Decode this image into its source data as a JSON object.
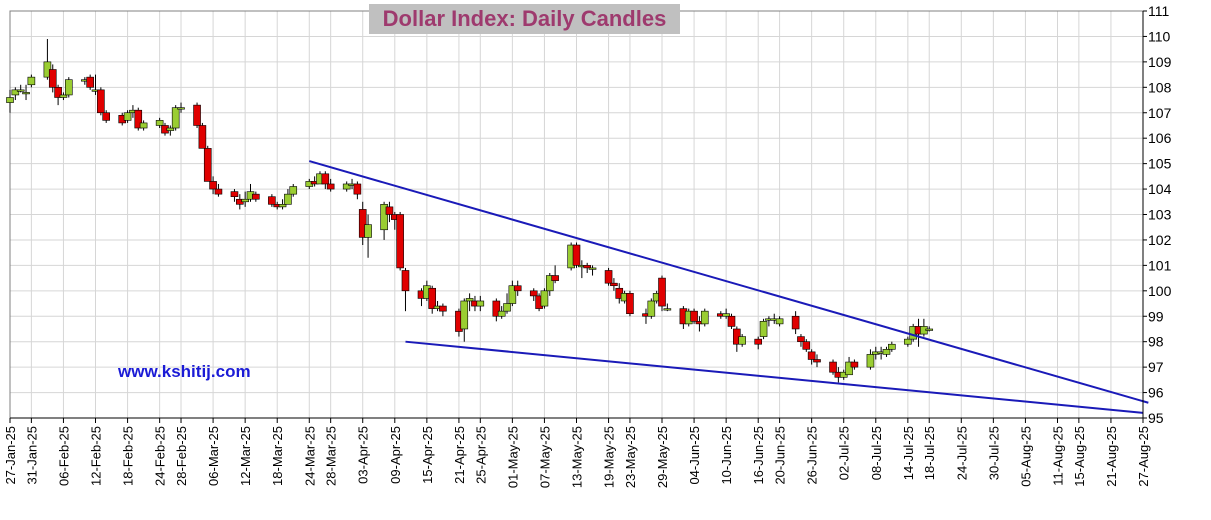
{
  "chart_data": {
    "type": "candlestick",
    "title": "Dollar Index:  Daily Candles",
    "watermark": "www.kshitij.com",
    "ylim": [
      95,
      111
    ],
    "y_ticks": [
      95,
      96,
      97,
      98,
      99,
      100,
      101,
      102,
      103,
      104,
      105,
      106,
      107,
      108,
      109,
      110,
      111
    ],
    "x_ticks": [
      "27-Jan-25",
      "31-Jan-25",
      "06-Feb-25",
      "12-Feb-25",
      "18-Feb-25",
      "24-Feb-25",
      "28-Feb-25",
      "06-Mar-25",
      "12-Mar-25",
      "18-Mar-25",
      "24-Mar-25",
      "28-Mar-25",
      "03-Apr-25",
      "09-Apr-25",
      "15-Apr-25",
      "21-Apr-25",
      "25-Apr-25",
      "01-May-25",
      "07-May-25",
      "13-May-25",
      "19-May-25",
      "23-May-25",
      "29-May-25",
      "04-Jun-25",
      "10-Jun-25",
      "16-Jun-25",
      "20-Jun-25",
      "26-Jun-25",
      "02-Jul-25",
      "08-Jul-25",
      "14-Jul-25",
      "18-Jul-25",
      "24-Jul-25",
      "30-Jul-25",
      "05-Aug-25",
      "11-Aug-25",
      "15-Aug-25",
      "21-Aug-25",
      "27-Aug-25"
    ],
    "up_color": "#9acd32",
    "down_color": "#e00000",
    "trendline_color": "#1a1ab8",
    "grid": true,
    "trendlines": [
      {
        "from": [
          "24-Mar-25",
          105.1
        ],
        "to": [
          "28-Aug-25",
          95.6
        ]
      },
      {
        "from": [
          "11-Apr-25",
          98.0
        ],
        "to": [
          "27-Aug-25",
          95.2
        ]
      }
    ],
    "candles": [
      {
        "date": "27-Jan-25",
        "o": 107.4,
        "h": 107.9,
        "l": 107.0,
        "c": 107.6
      },
      {
        "date": "28-Jan-25",
        "o": 107.7,
        "h": 108.0,
        "l": 107.5,
        "c": 107.9
      },
      {
        "date": "29-Jan-25",
        "o": 107.9,
        "h": 108.1,
        "l": 107.8,
        "c": 107.9
      },
      {
        "date": "30-Jan-25",
        "o": 107.8,
        "h": 108.1,
        "l": 107.5,
        "c": 107.8
      },
      {
        "date": "31-Jan-25",
        "o": 108.1,
        "h": 108.5,
        "l": 108.0,
        "c": 108.4
      },
      {
        "date": "03-Feb-25",
        "o": 108.4,
        "h": 109.9,
        "l": 108.3,
        "c": 109.0
      },
      {
        "date": "04-Feb-25",
        "o": 108.7,
        "h": 108.9,
        "l": 107.8,
        "c": 108.0
      },
      {
        "date": "05-Feb-25",
        "o": 108.0,
        "h": 108.1,
        "l": 107.3,
        "c": 107.6
      },
      {
        "date": "06-Feb-25",
        "o": 107.6,
        "h": 107.8,
        "l": 107.5,
        "c": 107.7
      },
      {
        "date": "07-Feb-25",
        "o": 107.7,
        "h": 108.4,
        "l": 107.6,
        "c": 108.3
      },
      {
        "date": "10-Feb-25",
        "o": 108.3,
        "h": 108.4,
        "l": 108.1,
        "c": 108.3
      },
      {
        "date": "11-Feb-25",
        "o": 108.4,
        "h": 108.5,
        "l": 107.9,
        "c": 108.0
      },
      {
        "date": "12-Feb-25",
        "o": 107.9,
        "h": 108.5,
        "l": 107.7,
        "c": 107.9
      },
      {
        "date": "13-Feb-25",
        "o": 107.9,
        "h": 108.0,
        "l": 106.9,
        "c": 107.0
      },
      {
        "date": "14-Feb-25",
        "o": 107.0,
        "h": 107.1,
        "l": 106.6,
        "c": 106.7
      },
      {
        "date": "17-Feb-25",
        "o": 106.9,
        "h": 107.0,
        "l": 106.5,
        "c": 106.6
      },
      {
        "date": "18-Feb-25",
        "o": 106.7,
        "h": 107.1,
        "l": 106.6,
        "c": 107.0
      },
      {
        "date": "19-Feb-25",
        "o": 107.0,
        "h": 107.3,
        "l": 106.8,
        "c": 107.1
      },
      {
        "date": "20-Feb-25",
        "o": 107.1,
        "h": 107.2,
        "l": 106.3,
        "c": 106.4
      },
      {
        "date": "21-Feb-25",
        "o": 106.4,
        "h": 106.7,
        "l": 106.3,
        "c": 106.6
      },
      {
        "date": "24-Feb-25",
        "o": 106.5,
        "h": 106.8,
        "l": 106.4,
        "c": 106.7
      },
      {
        "date": "25-Feb-25",
        "o": 106.5,
        "h": 106.6,
        "l": 106.1,
        "c": 106.2
      },
      {
        "date": "26-Feb-25",
        "o": 106.3,
        "h": 106.5,
        "l": 106.1,
        "c": 106.4
      },
      {
        "date": "27-Feb-25",
        "o": 106.4,
        "h": 107.3,
        "l": 106.3,
        "c": 107.2
      },
      {
        "date": "28-Feb-25",
        "o": 107.2,
        "h": 107.4,
        "l": 107.0,
        "c": 107.2
      },
      {
        "date": "03-Mar-25",
        "o": 107.3,
        "h": 107.4,
        "l": 106.4,
        "c": 106.5
      },
      {
        "date": "04-Mar-25",
        "o": 106.5,
        "h": 106.6,
        "l": 105.6,
        "c": 105.6
      },
      {
        "date": "05-Mar-25",
        "o": 105.6,
        "h": 105.7,
        "l": 104.3,
        "c": 104.3
      },
      {
        "date": "06-Mar-25",
        "o": 104.3,
        "h": 104.5,
        "l": 103.8,
        "c": 104.0
      },
      {
        "date": "07-Mar-25",
        "o": 104.0,
        "h": 104.2,
        "l": 103.7,
        "c": 103.8
      },
      {
        "date": "10-Mar-25",
        "o": 103.9,
        "h": 104.0,
        "l": 103.5,
        "c": 103.7
      },
      {
        "date": "11-Mar-25",
        "o": 103.6,
        "h": 103.8,
        "l": 103.2,
        "c": 103.4
      },
      {
        "date": "12-Mar-25",
        "o": 103.5,
        "h": 103.9,
        "l": 103.3,
        "c": 103.6
      },
      {
        "date": "13-Mar-25",
        "o": 103.6,
        "h": 104.2,
        "l": 103.5,
        "c": 103.9
      },
      {
        "date": "14-Mar-25",
        "o": 103.8,
        "h": 103.9,
        "l": 103.5,
        "c": 103.6
      },
      {
        "date": "17-Mar-25",
        "o": 103.7,
        "h": 103.8,
        "l": 103.3,
        "c": 103.4
      },
      {
        "date": "18-Mar-25",
        "o": 103.4,
        "h": 103.5,
        "l": 103.2,
        "c": 103.3
      },
      {
        "date": "19-Mar-25",
        "o": 103.3,
        "h": 103.6,
        "l": 103.2,
        "c": 103.4
      },
      {
        "date": "20-Mar-25",
        "o": 103.4,
        "h": 104.0,
        "l": 103.4,
        "c": 103.8
      },
      {
        "date": "21-Mar-25",
        "o": 103.8,
        "h": 104.2,
        "l": 103.7,
        "c": 104.1
      },
      {
        "date": "24-Mar-25",
        "o": 104.1,
        "h": 104.4,
        "l": 104.0,
        "c": 104.3
      },
      {
        "date": "25-Mar-25",
        "o": 104.3,
        "h": 104.5,
        "l": 104.1,
        "c": 104.2
      },
      {
        "date": "26-Mar-25",
        "o": 104.2,
        "h": 104.7,
        "l": 104.2,
        "c": 104.6
      },
      {
        "date": "27-Mar-25",
        "o": 104.6,
        "h": 104.7,
        "l": 104.0,
        "c": 104.2
      },
      {
        "date": "28-Mar-25",
        "o": 104.2,
        "h": 104.4,
        "l": 103.9,
        "c": 104.0
      },
      {
        "date": "31-Mar-25",
        "o": 104.0,
        "h": 104.3,
        "l": 103.9,
        "c": 104.2
      },
      {
        "date": "01-Apr-25",
        "o": 104.2,
        "h": 104.4,
        "l": 104.0,
        "c": 104.2
      },
      {
        "date": "02-Apr-25",
        "o": 104.2,
        "h": 104.3,
        "l": 103.6,
        "c": 103.8
      },
      {
        "date": "03-Apr-25",
        "o": 103.2,
        "h": 103.5,
        "l": 101.8,
        "c": 102.1
      },
      {
        "date": "04-Apr-25",
        "o": 102.1,
        "h": 103.0,
        "l": 101.3,
        "c": 102.6
      },
      {
        "date": "07-Apr-25",
        "o": 102.4,
        "h": 103.5,
        "l": 102.0,
        "c": 103.4
      },
      {
        "date": "08-Apr-25",
        "o": 103.3,
        "h": 103.5,
        "l": 102.7,
        "c": 103.0
      },
      {
        "date": "09-Apr-25",
        "o": 103.0,
        "h": 103.1,
        "l": 102.4,
        "c": 102.8
      },
      {
        "date": "10-Apr-25",
        "o": 103.0,
        "h": 103.1,
        "l": 100.8,
        "c": 100.9
      },
      {
        "date": "11-Apr-25",
        "o": 100.8,
        "h": 100.9,
        "l": 99.2,
        "c": 100.0
      },
      {
        "date": "14-Apr-25",
        "o": 100.0,
        "h": 100.1,
        "l": 99.4,
        "c": 99.7
      },
      {
        "date": "15-Apr-25",
        "o": 99.7,
        "h": 100.4,
        "l": 99.6,
        "c": 100.2
      },
      {
        "date": "16-Apr-25",
        "o": 100.1,
        "h": 100.2,
        "l": 99.1,
        "c": 99.3
      },
      {
        "date": "17-Apr-25",
        "o": 99.3,
        "h": 99.6,
        "l": 99.2,
        "c": 99.4
      },
      {
        "date": "18-Apr-25",
        "o": 99.4,
        "h": 99.5,
        "l": 99.0,
        "c": 99.2
      },
      {
        "date": "21-Apr-25",
        "o": 99.2,
        "h": 99.3,
        "l": 98.2,
        "c": 98.4
      },
      {
        "date": "22-Apr-25",
        "o": 98.5,
        "h": 99.7,
        "l": 98.0,
        "c": 99.6
      },
      {
        "date": "23-Apr-25",
        "o": 99.6,
        "h": 99.9,
        "l": 99.2,
        "c": 99.7
      },
      {
        "date": "24-Apr-25",
        "o": 99.6,
        "h": 99.8,
        "l": 99.2,
        "c": 99.4
      },
      {
        "date": "25-Apr-25",
        "o": 99.4,
        "h": 99.8,
        "l": 99.2,
        "c": 99.6
      },
      {
        "date": "28-Apr-25",
        "o": 99.6,
        "h": 99.7,
        "l": 98.8,
        "c": 99.0
      },
      {
        "date": "29-Apr-25",
        "o": 99.0,
        "h": 99.4,
        "l": 98.9,
        "c": 99.2
      },
      {
        "date": "30-Apr-25",
        "o": 99.2,
        "h": 99.9,
        "l": 99.1,
        "c": 99.5
      },
      {
        "date": "01-May-25",
        "o": 99.5,
        "h": 100.4,
        "l": 99.4,
        "c": 100.2
      },
      {
        "date": "02-May-25",
        "o": 100.2,
        "h": 100.4,
        "l": 99.8,
        "c": 100.0
      },
      {
        "date": "05-May-25",
        "o": 100.0,
        "h": 100.1,
        "l": 99.6,
        "c": 99.8
      },
      {
        "date": "06-May-25",
        "o": 99.8,
        "h": 99.9,
        "l": 99.2,
        "c": 99.3
      },
      {
        "date": "07-May-25",
        "o": 99.4,
        "h": 100.1,
        "l": 99.3,
        "c": 100.0
      },
      {
        "date": "08-May-25",
        "o": 100.0,
        "h": 100.7,
        "l": 99.8,
        "c": 100.6
      },
      {
        "date": "09-May-25",
        "o": 100.6,
        "h": 101.0,
        "l": 100.3,
        "c": 100.4
      },
      {
        "date": "12-May-25",
        "o": 100.9,
        "h": 101.9,
        "l": 100.8,
        "c": 101.8
      },
      {
        "date": "13-May-25",
        "o": 101.8,
        "h": 101.9,
        "l": 100.9,
        "c": 101.0
      },
      {
        "date": "14-May-25",
        "o": 101.0,
        "h": 101.2,
        "l": 100.5,
        "c": 101.0
      },
      {
        "date": "15-May-25",
        "o": 101.0,
        "h": 101.1,
        "l": 100.7,
        "c": 100.9
      },
      {
        "date": "16-May-25",
        "o": 100.9,
        "h": 101.0,
        "l": 100.6,
        "c": 100.9
      },
      {
        "date": "19-May-25",
        "o": 100.8,
        "h": 100.9,
        "l": 100.2,
        "c": 100.3
      },
      {
        "date": "20-May-25",
        "o": 100.3,
        "h": 100.5,
        "l": 100.0,
        "c": 100.2
      },
      {
        "date": "21-May-25",
        "o": 100.1,
        "h": 100.3,
        "l": 99.5,
        "c": 99.7
      },
      {
        "date": "22-May-25",
        "o": 99.6,
        "h": 100.0,
        "l": 99.5,
        "c": 99.9
      },
      {
        "date": "23-May-25",
        "o": 99.9,
        "h": 100.0,
        "l": 99.0,
        "c": 99.1
      },
      {
        "date": "26-May-25",
        "o": 99.1,
        "h": 99.3,
        "l": 98.7,
        "c": 99.0
      },
      {
        "date": "27-May-25",
        "o": 99.0,
        "h": 99.7,
        "l": 98.9,
        "c": 99.6
      },
      {
        "date": "28-May-25",
        "o": 99.6,
        "h": 100.0,
        "l": 99.5,
        "c": 99.9
      },
      {
        "date": "29-May-25",
        "o": 100.5,
        "h": 100.6,
        "l": 99.2,
        "c": 99.4
      },
      {
        "date": "30-May-25",
        "o": 99.3,
        "h": 99.5,
        "l": 99.2,
        "c": 99.3
      },
      {
        "date": "02-Jun-25",
        "o": 99.3,
        "h": 99.4,
        "l": 98.5,
        "c": 98.7
      },
      {
        "date": "03-Jun-25",
        "o": 98.7,
        "h": 99.3,
        "l": 98.6,
        "c": 99.2
      },
      {
        "date": "04-Jun-25",
        "o": 99.2,
        "h": 99.3,
        "l": 98.7,
        "c": 98.8
      },
      {
        "date": "05-Jun-25",
        "o": 98.8,
        "h": 99.0,
        "l": 98.4,
        "c": 98.7
      },
      {
        "date": "06-Jun-25",
        "o": 98.7,
        "h": 99.3,
        "l": 98.6,
        "c": 99.2
      },
      {
        "date": "09-Jun-25",
        "o": 99.1,
        "h": 99.2,
        "l": 98.9,
        "c": 99.0
      },
      {
        "date": "10-Jun-25",
        "o": 99.0,
        "h": 99.3,
        "l": 98.9,
        "c": 99.1
      },
      {
        "date": "11-Jun-25",
        "o": 99.0,
        "h": 99.1,
        "l": 98.5,
        "c": 98.6
      },
      {
        "date": "12-Jun-25",
        "o": 98.5,
        "h": 98.6,
        "l": 97.6,
        "c": 97.9
      },
      {
        "date": "13-Jun-25",
        "o": 97.9,
        "h": 98.3,
        "l": 97.8,
        "c": 98.2
      },
      {
        "date": "16-Jun-25",
        "o": 98.1,
        "h": 98.2,
        "l": 97.7,
        "c": 97.9
      },
      {
        "date": "17-Jun-25",
        "o": 98.2,
        "h": 98.9,
        "l": 98.1,
        "c": 98.8
      },
      {
        "date": "18-Jun-25",
        "o": 98.9,
        "h": 99.0,
        "l": 98.6,
        "c": 98.9
      },
      {
        "date": "19-Jun-25",
        "o": 98.9,
        "h": 99.1,
        "l": 98.7,
        "c": 98.9
      },
      {
        "date": "20-Jun-25",
        "o": 98.7,
        "h": 99.0,
        "l": 98.6,
        "c": 98.9
      },
      {
        "date": "23-Jun-25",
        "o": 99.0,
        "h": 99.2,
        "l": 98.3,
        "c": 98.5
      },
      {
        "date": "24-Jun-25",
        "o": 98.2,
        "h": 98.3,
        "l": 97.8,
        "c": 98.0
      },
      {
        "date": "25-Jun-25",
        "o": 98.0,
        "h": 98.1,
        "l": 97.6,
        "c": 97.7
      },
      {
        "date": "26-Jun-25",
        "o": 97.6,
        "h": 97.7,
        "l": 97.1,
        "c": 97.3
      },
      {
        "date": "27-Jun-25",
        "o": 97.3,
        "h": 97.5,
        "l": 97.0,
        "c": 97.2
      },
      {
        "date": "30-Jun-25",
        "o": 97.2,
        "h": 97.3,
        "l": 96.7,
        "c": 96.8
      },
      {
        "date": "01-Jul-25",
        "o": 96.8,
        "h": 97.0,
        "l": 96.4,
        "c": 96.6
      },
      {
        "date": "02-Jul-25",
        "o": 96.6,
        "h": 96.9,
        "l": 96.5,
        "c": 96.8
      },
      {
        "date": "03-Jul-25",
        "o": 96.7,
        "h": 97.4,
        "l": 96.7,
        "c": 97.2
      },
      {
        "date": "04-Jul-25",
        "o": 97.2,
        "h": 97.3,
        "l": 96.9,
        "c": 97.0
      },
      {
        "date": "07-Jul-25",
        "o": 97.0,
        "h": 97.7,
        "l": 96.9,
        "c": 97.5
      },
      {
        "date": "08-Jul-25",
        "o": 97.5,
        "h": 97.8,
        "l": 97.3,
        "c": 97.6
      },
      {
        "date": "09-Jul-25",
        "o": 97.6,
        "h": 97.8,
        "l": 97.3,
        "c": 97.6
      },
      {
        "date": "10-Jul-25",
        "o": 97.5,
        "h": 97.8,
        "l": 97.4,
        "c": 97.7
      },
      {
        "date": "11-Jul-25",
        "o": 97.7,
        "h": 98.0,
        "l": 97.6,
        "c": 97.9
      },
      {
        "date": "14-Jul-25",
        "o": 97.9,
        "h": 98.2,
        "l": 97.8,
        "c": 98.1
      },
      {
        "date": "15-Jul-25",
        "o": 98.1,
        "h": 98.7,
        "l": 98.0,
        "c": 98.6
      },
      {
        "date": "16-Jul-25",
        "o": 98.6,
        "h": 98.9,
        "l": 97.8,
        "c": 98.3
      },
      {
        "date": "17-Jul-25",
        "o": 98.3,
        "h": 98.9,
        "l": 98.2,
        "c": 98.6
      },
      {
        "date": "18-Jul-25",
        "o": 98.5,
        "h": 98.6,
        "l": 98.4,
        "c": 98.5
      }
    ]
  }
}
